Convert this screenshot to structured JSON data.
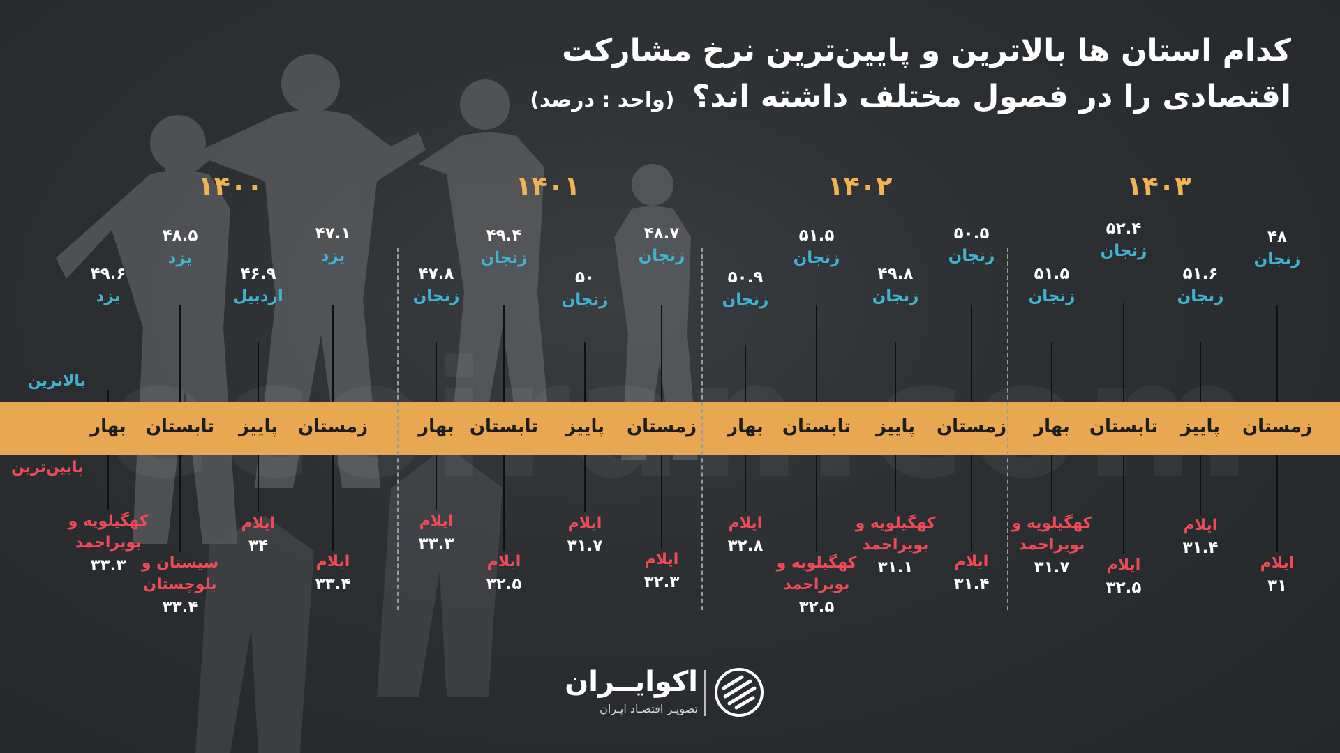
{
  "title": {
    "line1": "کدام استان ها بالاترین و پایین‌ترین نرخ مشارکت",
    "line2": "اقتصادی را در فصول مختلف داشته اند؟",
    "unit": "(واحد : درصد)"
  },
  "legend": {
    "top": "بالاترین",
    "bottom": "پایین‌ترین"
  },
  "watermark": "ecoiran.com",
  "years": [
    "۱۴۰۰",
    "۱۴۰۱",
    "۱۴۰۲",
    "۱۴۰۳"
  ],
  "seasons": [
    {
      "season": "بهار",
      "high_prov": "یزد",
      "high_val": "۴۹.۶",
      "low_prov": "کهگیلویه و بویراحمد",
      "low_val": "۳۳.۳"
    },
    {
      "season": "تابستان",
      "high_prov": "یزد",
      "high_val": "۴۸.۵",
      "low_prov": "سیستان و بلوچستان",
      "low_val": "۳۳.۴"
    },
    {
      "season": "پاییز",
      "high_prov": "اردبیل",
      "high_val": "۴۶.۹",
      "low_prov": "ایلام",
      "low_val": "۳۴"
    },
    {
      "season": "زمستان",
      "high_prov": "یزد",
      "high_val": "۴۷.۱",
      "low_prov": "ایلام",
      "low_val": "۳۳.۴"
    },
    {
      "season": "بهار",
      "high_prov": "زنجان",
      "high_val": "۴۷.۸",
      "low_prov": "ایلام",
      "low_val": "۳۳.۳"
    },
    {
      "season": "تابستان",
      "high_prov": "زنجان",
      "high_val": "۴۹.۴",
      "low_prov": "ایلام",
      "low_val": "۳۲.۵"
    },
    {
      "season": "پاییز",
      "high_prov": "زنجان",
      "high_val": "۵۰",
      "low_prov": "ایلام",
      "low_val": "۳۱.۷"
    },
    {
      "season": "زمستان",
      "high_prov": "زنجان",
      "high_val": "۴۸.۷",
      "low_prov": "ایلام",
      "low_val": "۳۲.۳"
    },
    {
      "season": "بهار",
      "high_prov": "زنجان",
      "high_val": "۵۰.۹",
      "low_prov": "ایلام",
      "low_val": "۳۲.۸"
    },
    {
      "season": "تابستان",
      "high_prov": "زنجان",
      "high_val": "۵۱.۵",
      "low_prov": "کهگیلویه و بویراحمد",
      "low_val": "۳۲.۵"
    },
    {
      "season": "پاییز",
      "high_prov": "زنجان",
      "high_val": "۴۹.۸",
      "low_prov": "کهگیلویه و بویراحمد",
      "low_val": "۳۱.۱"
    },
    {
      "season": "زمستان",
      "high_prov": "زنجان",
      "high_val": "۵۰.۵",
      "low_prov": "ایلام",
      "low_val": "۳۱.۴"
    },
    {
      "season": "بهار",
      "high_prov": "زنجان",
      "high_val": "۵۱.۵",
      "low_prov": "کهگیلویه و بویراحمد",
      "low_val": "۳۱.۷"
    },
    {
      "season": "تابستان",
      "high_prov": "زنجان",
      "high_val": "۵۲.۴",
      "low_prov": "ایلام",
      "low_val": "۳۲.۵"
    },
    {
      "season": "پاییز",
      "high_prov": "زنجان",
      "high_val": "۵۱.۶",
      "low_prov": "ایلام",
      "low_val": "۳۱.۴"
    },
    {
      "season": "زمستان",
      "high_prov": "زنجان",
      "high_val": "۴۸",
      "low_prov": "ایلام",
      "low_val": "۳۱"
    }
  ],
  "logo": {
    "name": "اکوایــران",
    "tagline": "تصویـر اقتصـاد ایـران"
  },
  "colors": {
    "accent_band": "#e8a852",
    "year": "#f2b354",
    "high": "#3fb3cf",
    "low": "#ef4a56"
  }
}
